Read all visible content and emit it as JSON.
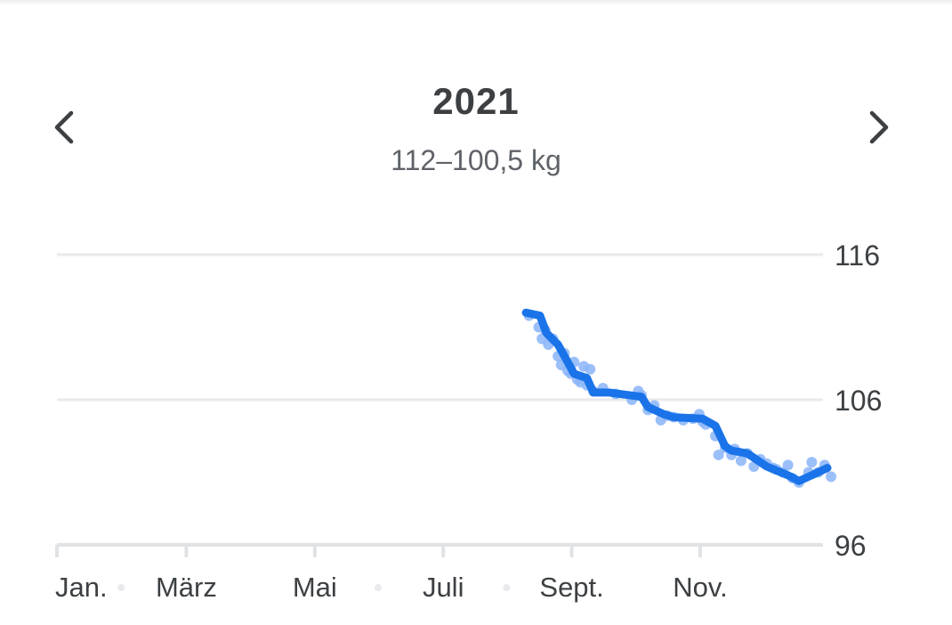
{
  "header": {
    "title": "2021",
    "range_label": "112–100,5 kg",
    "prev_icon": "chevron-left-icon",
    "next_icon": "chevron-right-icon"
  },
  "colors": {
    "line": "#1a73e8",
    "points": "#8ab4f8",
    "grid": "#e8eaed",
    "text": "#3c4043"
  },
  "chart_data": {
    "type": "line",
    "title": "2021",
    "subtitle": "112–100,5 kg",
    "ylim": [
      96,
      116
    ],
    "yticks": [
      "116",
      "106",
      "96"
    ],
    "ytick_values": [
      116,
      106,
      96
    ],
    "xticks": [
      "Jan.",
      "März",
      "Mai",
      "Juli",
      "Sept.",
      "Nov."
    ],
    "xtick_months": [
      0,
      2,
      4,
      6,
      8,
      10
    ],
    "minor_months": [
      1,
      5,
      7
    ],
    "grid": true,
    "series": [
      {
        "role": "trend",
        "x_month": [
          7.3,
          7.52,
          7.62,
          7.8,
          7.95,
          8.05,
          8.25,
          8.35,
          8.6,
          9.1,
          9.2,
          9.45,
          9.6,
          10.05,
          10.25,
          10.4,
          10.5,
          10.75,
          11.05,
          11.38,
          11.55,
          11.75,
          12.05
        ],
        "values": [
          112.0,
          111.8,
          110.6,
          109.8,
          108.6,
          107.8,
          107.5,
          106.5,
          106.5,
          106.2,
          105.5,
          105.0,
          104.8,
          104.7,
          104.2,
          102.8,
          102.5,
          102.3,
          101.4,
          100.8,
          100.4,
          100.8,
          101.3
        ]
      },
      {
        "role": "measurements",
        "x_month": [
          7.35,
          7.5,
          7.55,
          7.6,
          7.65,
          7.72,
          7.8,
          7.85,
          7.9,
          7.95,
          8.0,
          8.05,
          8.1,
          8.15,
          8.2,
          8.25,
          8.3,
          8.35,
          8.5,
          8.7,
          8.95,
          9.05,
          9.1,
          9.2,
          9.3,
          9.4,
          9.5,
          9.6,
          9.75,
          9.9,
          10.0,
          10.05,
          10.1,
          10.25,
          10.3,
          10.4,
          10.5,
          10.55,
          10.65,
          10.75,
          10.85,
          10.95,
          11.05,
          11.15,
          11.2,
          11.3,
          11.38,
          11.45,
          11.55,
          11.7,
          11.75,
          11.85,
          11.95,
          12.05
        ],
        "values": [
          111.8,
          111.0,
          110.2,
          110.8,
          109.8,
          110.2,
          109.0,
          108.4,
          109.2,
          108.0,
          107.8,
          108.6,
          107.4,
          107.2,
          108.3,
          107.0,
          108.1,
          106.6,
          106.8,
          106.4,
          106.0,
          106.6,
          106.3,
          105.3,
          105.6,
          104.6,
          104.9,
          104.8,
          104.6,
          104.7,
          105.0,
          104.5,
          104.3,
          103.5,
          102.2,
          102.7,
          102.2,
          102.6,
          101.8,
          102.3,
          101.4,
          101.9,
          101.6,
          101.3,
          101.2,
          101.0,
          101.5,
          100.6,
          100.3,
          101.0,
          101.7,
          101.0,
          101.5,
          100.7
        ]
      }
    ]
  }
}
